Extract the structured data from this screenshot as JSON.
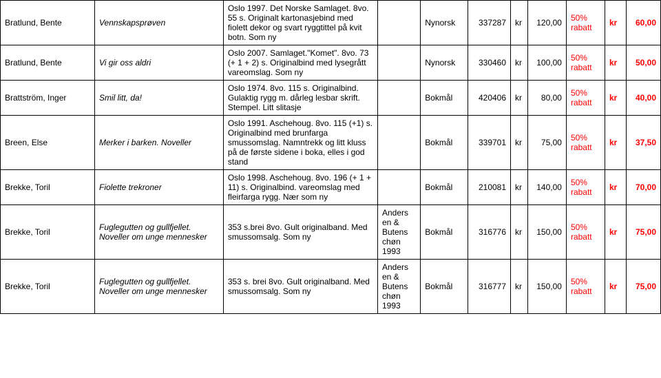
{
  "colors": {
    "text": "#000000",
    "accent": "#ff0000",
    "background": "#ffffff",
    "border": "#000000"
  },
  "currency": "kr",
  "rows": [
    {
      "author": "Bratlund, Bente",
      "title": "Vennskapsprøven",
      "desc": "Oslo 1997. Det Norske Samlaget. 8vo. 55 s. Originalt kartonasjebind med fiolett dekor og svart ryggtittel på kvit botn. Som ny",
      "publisher": "",
      "language": "Nynorsk",
      "id": "337287",
      "price_currency": "kr",
      "price": "120,00",
      "discount": "50% rabatt",
      "final_currency": "kr",
      "final": "60,00"
    },
    {
      "author": "Bratlund, Bente",
      "title": "Vi gir oss aldri",
      "desc": "Oslo 2007. Samlaget.\"Komet\". 8vo. 73 (+ 1 + 2) s. Originalbind med lysegrått vareomslag. Som ny",
      "publisher": "",
      "language": "Nynorsk",
      "id": "330460",
      "price_currency": "kr",
      "price": "100,00",
      "discount": "50% rabatt",
      "final_currency": "kr",
      "final": "50,00"
    },
    {
      "author": "Brattström, Inger",
      "title": "Smil litt, da!",
      "desc": "Oslo 1974. 8vo. 115 s. Originalbind. Gulaktig rygg m. dårleg lesbar skrift. Stempel. Litt slitasje",
      "publisher": "",
      "language": "Bokmål",
      "id": "420406",
      "price_currency": "kr",
      "price": "80,00",
      "discount": "50% rabatt",
      "final_currency": "kr",
      "final": "40,00"
    },
    {
      "author": "Breen, Else",
      "title": "Merker i barken. Noveller",
      "desc": "Oslo 1991. Aschehoug. 8vo. 115 (+1) s. Originalbind med brunfarga smussomslag. Namntrekk og litt kluss på de første sidene i boka, elles i god stand",
      "publisher": "",
      "language": "Bokmål",
      "id": "339701",
      "price_currency": "kr",
      "price": "75,00",
      "discount": "50% rabatt",
      "final_currency": "kr",
      "final": "37,50"
    },
    {
      "author": "Brekke, Toril",
      "title": "Fiolette trekroner",
      "desc": "Oslo 1998. Aschehoug. 8vo. 196 (+ 1 + 11) s. Originalbind. vareomslag med fleirfarga rygg. Nær som ny",
      "publisher": "",
      "language": "Bokmål",
      "id": "210081",
      "price_currency": "kr",
      "price": "140,00",
      "discount": "50% rabatt",
      "final_currency": "kr",
      "final": "70,00"
    },
    {
      "author": "Brekke, Toril",
      "title": "Fuglegutten og gullfjellet. Noveller om unge mennesker",
      "desc": "353 s.brei 8vo. Gult originalband. Med smussomsalg. Som ny",
      "publisher": "Anders en & Butens chøn 1993",
      "language": "Bokmål",
      "id": "316776",
      "price_currency": "kr",
      "price": "150,00",
      "discount": "50% rabatt",
      "final_currency": "kr",
      "final": "75,00"
    },
    {
      "author": "Brekke, Toril",
      "title": "Fuglegutten og gullfjellet. Noveller om unge mennesker",
      "desc": "353 s. brei 8vo. Gult originalband. Med smussomsalg. Som ny",
      "publisher": "Anders en & Butens chøn 1993",
      "language": "Bokmål",
      "id": "316777",
      "price_currency": "kr",
      "price": "150,00",
      "discount": "50% rabatt",
      "final_currency": "kr",
      "final": "75,00"
    }
  ]
}
